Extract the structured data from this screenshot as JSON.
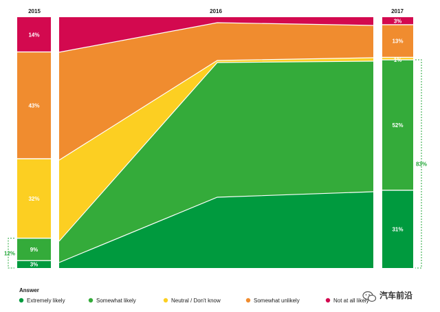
{
  "chart_data": {
    "type": "area",
    "years": [
      "2015",
      "2016",
      "2017"
    ],
    "legend_title": "Answer",
    "series": [
      {
        "name": "Extremely likely",
        "color": "#009a3e",
        "values": [
          3,
          null,
          31
        ],
        "labels": [
          "3%",
          "",
          "31%"
        ]
      },
      {
        "name": "Somewhat likely",
        "color": "#34ab3a",
        "values": [
          9,
          null,
          52
        ],
        "labels": [
          "9%",
          "",
          "52%"
        ]
      },
      {
        "name": "Neutral / Don't know",
        "color": "#fccf22",
        "values": [
          32,
          null,
          1
        ],
        "labels": [
          "32%",
          "",
          "1%"
        ]
      },
      {
        "name": "Somewhat unlikely",
        "color": "#f08c2f",
        "values": [
          43,
          null,
          13
        ],
        "labels": [
          "43%",
          "",
          "13%"
        ]
      },
      {
        "name": "Not at all likely",
        "color": "#d3094f",
        "values": [
          14,
          null,
          3
        ],
        "labels": [
          "14%",
          "",
          "3%"
        ]
      }
    ],
    "legend_labels": [
      "Extremely likely",
      "Somewhat likely",
      "Neutral / Don't know",
      "Somewhat unlikely",
      "Not at all likely"
    ],
    "totals": [
      {
        "year": "2015",
        "label": "12%",
        "value": 12
      },
      {
        "year": "2017",
        "label": "83%",
        "value": 83
      }
    ]
  },
  "watermark": {
    "text": "汽车前沿",
    "icon": "wechat-icon"
  }
}
